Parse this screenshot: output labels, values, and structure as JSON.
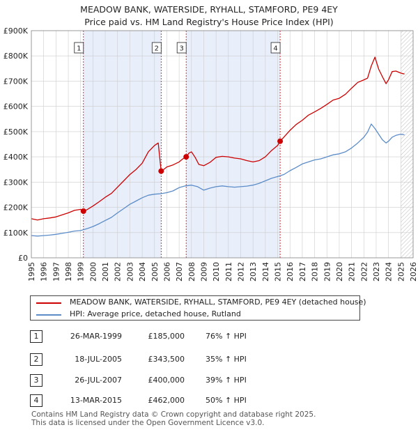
{
  "title_line1": "MEADOW BANK, WATERSIDE, RYHALL, STAMFORD, PE9 4EY",
  "title_line2": "Price paid vs. HM Land Registry's House Price Index (HPI)",
  "legend": {
    "property_label": "MEADOW BANK, WATERSIDE, RYHALL, STAMFORD, PE9 4EY (detached house)",
    "hpi_label": "HPI: Average price, detached house, Rutland"
  },
  "colors": {
    "property": "#cc0000",
    "hpi": "#5b8cc8",
    "shade": "#e8eefa",
    "vline": "#cc0000",
    "grid": "#cccccc"
  },
  "sales": [
    {
      "num": "1",
      "date": "26-MAR-1999",
      "price": "£185,000",
      "hpi": "76% ↑ HPI"
    },
    {
      "num": "2",
      "date": "18-JUL-2005",
      "price": "£343,500",
      "hpi": "35% ↑ HPI"
    },
    {
      "num": "3",
      "date": "26-JUL-2007",
      "price": "£400,000",
      "hpi": "39% ↑ HPI"
    },
    {
      "num": "4",
      "date": "13-MAR-2015",
      "price": "£462,000",
      "hpi": "50% ↑ HPI"
    }
  ],
  "footer_line1": "Contains HM Land Registry data © Crown copyright and database right 2025.",
  "footer_line2": "This data is licensed under the Open Government Licence v3.0.",
  "chart_data": {
    "type": "line",
    "xlim": [
      1995,
      2026
    ],
    "ylim": [
      0,
      900000
    ],
    "x_ticks": [
      1995,
      1996,
      1997,
      1998,
      1999,
      2000,
      2001,
      2002,
      2003,
      2004,
      2005,
      2006,
      2007,
      2008,
      2009,
      2010,
      2011,
      2012,
      2013,
      2014,
      2015,
      2016,
      2017,
      2018,
      2019,
      2020,
      2021,
      2022,
      2023,
      2024,
      2025,
      2026
    ],
    "y_ticks": [
      0,
      100000,
      200000,
      300000,
      400000,
      500000,
      600000,
      700000,
      800000,
      900000
    ],
    "y_tick_labels": [
      "£0",
      "£100K",
      "£200K",
      "£300K",
      "£400K",
      "£500K",
      "£600K",
      "£700K",
      "£800K",
      "£900K"
    ],
    "shaded_ranges": [
      [
        1999.23,
        2005.54
      ],
      [
        2007.57,
        2015.2
      ]
    ],
    "forecast_from": 2025.0,
    "sale_markers": [
      {
        "label": "1",
        "x": 1999.23,
        "y": 185000
      },
      {
        "label": "2",
        "x": 2005.54,
        "y": 343500
      },
      {
        "label": "3",
        "x": 2007.57,
        "y": 400000
      },
      {
        "label": "4",
        "x": 2015.2,
        "y": 462000
      }
    ],
    "series": [
      {
        "name": "MEADOW BANK, WATERSIDE, RYHALL, STAMFORD, PE9 4EY (detached house)",
        "color": "#cc0000",
        "x": [
          1995,
          1995.5,
          1996,
          1996.5,
          1997,
          1997.5,
          1998,
          1998.5,
          1999,
          1999.23,
          1999.5,
          2000,
          2000.5,
          2001,
          2001.5,
          2002,
          2002.5,
          2003,
          2003.5,
          2004,
          2004.5,
          2005,
          2005.3,
          2005.54,
          2005.8,
          2006,
          2006.5,
          2007,
          2007.3,
          2007.57,
          2007.8,
          2008,
          2008.3,
          2008.6,
          2009,
          2009.5,
          2010,
          2010.5,
          2011,
          2011.5,
          2012,
          2012.5,
          2013,
          2013.5,
          2014,
          2014.5,
          2015,
          2015.2,
          2015.5,
          2016,
          2016.5,
          2017,
          2017.5,
          2018,
          2018.5,
          2019,
          2019.5,
          2020,
          2020.5,
          2021,
          2021.5,
          2022,
          2022.3,
          2022.6,
          2022.9,
          2023.2,
          2023.5,
          2023.8,
          2024,
          2024.3,
          2024.6,
          2025,
          2025.3
        ],
        "y": [
          155000,
          150000,
          155000,
          158000,
          162000,
          170000,
          178000,
          188000,
          192000,
          185000,
          190000,
          205000,
          222000,
          240000,
          255000,
          280000,
          305000,
          330000,
          350000,
          375000,
          420000,
          445000,
          455000,
          343500,
          352000,
          360000,
          368000,
          380000,
          392000,
          400000,
          415000,
          420000,
          398000,
          370000,
          365000,
          378000,
          398000,
          402000,
          400000,
          395000,
          392000,
          385000,
          380000,
          385000,
          400000,
          425000,
          445000,
          462000,
          478000,
          505000,
          528000,
          545000,
          565000,
          578000,
          592000,
          608000,
          625000,
          632000,
          648000,
          672000,
          695000,
          705000,
          712000,
          760000,
          795000,
          748000,
          718000,
          690000,
          705000,
          738000,
          740000,
          732000,
          728000
        ]
      },
      {
        "name": "HPI: Average price, detached house, Rutland",
        "color": "#5b8cc8",
        "x": [
          1995,
          1995.5,
          1996,
          1996.5,
          1997,
          1997.5,
          1998,
          1998.5,
          1999,
          1999.5,
          2000,
          2000.5,
          2001,
          2001.5,
          2002,
          2002.5,
          2003,
          2003.5,
          2004,
          2004.5,
          2005,
          2005.5,
          2006,
          2006.5,
          2007,
          2007.5,
          2008,
          2008.5,
          2009,
          2009.5,
          2010,
          2010.5,
          2011,
          2011.5,
          2012,
          2012.5,
          2013,
          2013.5,
          2014,
          2014.5,
          2015,
          2015.5,
          2016,
          2016.5,
          2017,
          2017.5,
          2018,
          2018.5,
          2019,
          2019.5,
          2020,
          2020.5,
          2021,
          2021.5,
          2022,
          2022.3,
          2022.6,
          2022.9,
          2023.2,
          2023.5,
          2023.8,
          2024,
          2024.3,
          2024.6,
          2025,
          2025.3
        ],
        "y": [
          88000,
          86000,
          88000,
          90000,
          93000,
          97000,
          101000,
          106000,
          108000,
          115000,
          124000,
          135000,
          148000,
          160000,
          178000,
          195000,
          212000,
          225000,
          238000,
          248000,
          252000,
          254000,
          258000,
          265000,
          278000,
          285000,
          288000,
          282000,
          268000,
          276000,
          282000,
          285000,
          282000,
          280000,
          282000,
          284000,
          288000,
          295000,
          305000,
          315000,
          322000,
          330000,
          345000,
          358000,
          372000,
          380000,
          388000,
          392000,
          400000,
          408000,
          412000,
          420000,
          435000,
          455000,
          478000,
          498000,
          530000,
          512000,
          490000,
          468000,
          455000,
          462000,
          478000,
          485000,
          490000,
          487000
        ]
      }
    ]
  }
}
